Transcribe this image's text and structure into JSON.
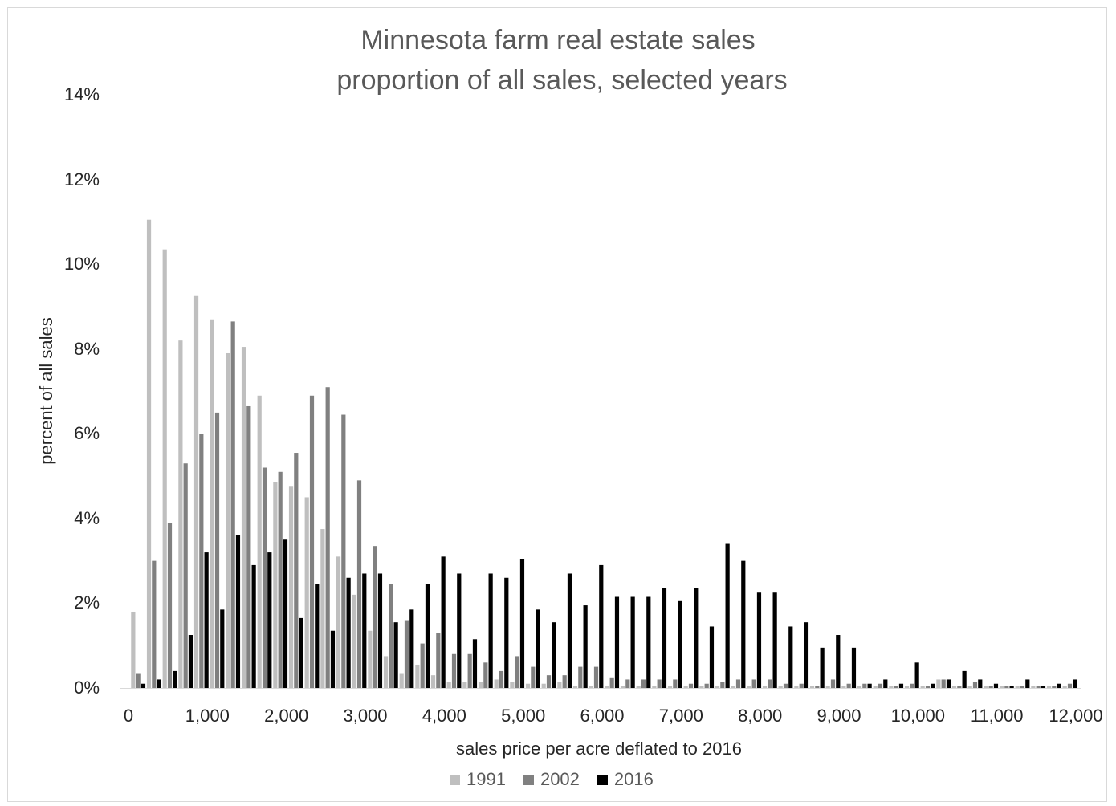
{
  "chart_data": {
    "type": "bar",
    "title": "Minnesota farm real estate sales",
    "subtitle": "proportion of all sales, selected years",
    "xlabel": "sales price per acre deflated to 2016",
    "ylabel": "percent of all sales",
    "ylim": [
      0,
      14
    ],
    "yticks": [
      "0%",
      "2%",
      "4%",
      "6%",
      "8%",
      "10%",
      "12%",
      "14%"
    ],
    "xlim": [
      0,
      12000
    ],
    "xticks": [
      "0",
      "1,000",
      "2,000",
      "3,000",
      "4,000",
      "5,000",
      "6,000",
      "7,000",
      "8,000",
      "9,000",
      "10,000",
      "11,000",
      "12,000"
    ],
    "grid": false,
    "legend_position": "bottom",
    "bin_width": 200,
    "x": [
      200,
      400,
      600,
      800,
      1000,
      1200,
      1400,
      1600,
      1800,
      2000,
      2200,
      2400,
      2600,
      2800,
      3000,
      3200,
      3400,
      3600,
      3800,
      4000,
      4200,
      4400,
      4600,
      4800,
      5000,
      5200,
      5400,
      5600,
      5800,
      6000,
      6200,
      6400,
      6600,
      6800,
      7000,
      7200,
      7400,
      7600,
      7800,
      8000,
      8200,
      8400,
      8600,
      8800,
      9000,
      9200,
      9400,
      9600,
      9800,
      10000,
      10200,
      10400,
      10600,
      10800,
      11000,
      11200,
      11400,
      11600,
      11800,
      12000
    ],
    "series": [
      {
        "name": "1991",
        "color": "#bfbfbf",
        "values": [
          1.8,
          11.05,
          10.35,
          8.2,
          9.25,
          8.7,
          7.9,
          8.05,
          6.9,
          4.85,
          4.75,
          4.5,
          3.75,
          3.1,
          2.2,
          1.35,
          0.75,
          0.35,
          0.55,
          0.3,
          0.15,
          0.15,
          0.15,
          0.2,
          0.15,
          0.1,
          0.1,
          0.15,
          0.05,
          0.05,
          0.05,
          0.05,
          0.05,
          0.05,
          0.05,
          0.05,
          0.05,
          0.05,
          0.05,
          0.05,
          0.05,
          0.05,
          0.05,
          0.05,
          0.05,
          0.05,
          0.05,
          0.05,
          0.05,
          0.05,
          0.05,
          0.2,
          0.05,
          0.05,
          0.05,
          0.05,
          0.05,
          0.05,
          0.05,
          0.05
        ]
      },
      {
        "name": "2002",
        "color": "#808080",
        "values": [
          0.35,
          3.0,
          3.9,
          5.3,
          6.0,
          6.5,
          8.65,
          6.65,
          5.2,
          5.1,
          5.55,
          6.9,
          7.1,
          6.45,
          4.9,
          3.35,
          2.45,
          1.6,
          1.05,
          1.3,
          0.8,
          0.8,
          0.6,
          0.4,
          0.75,
          0.5,
          0.3,
          0.3,
          0.5,
          0.5,
          0.25,
          0.2,
          0.2,
          0.2,
          0.2,
          0.1,
          0.1,
          0.15,
          0.2,
          0.2,
          0.2,
          0.1,
          0.1,
          0.05,
          0.2,
          0.1,
          0.1,
          0.1,
          0.05,
          0.1,
          0.05,
          0.2,
          0.05,
          0.15,
          0.05,
          0.05,
          0.05,
          0.05,
          0.05,
          0.1
        ]
      },
      {
        "name": "2016",
        "color": "#000000",
        "values": [
          0.1,
          0.2,
          0.4,
          1.25,
          3.2,
          1.85,
          3.6,
          2.9,
          3.2,
          3.5,
          1.65,
          2.45,
          1.35,
          2.6,
          2.7,
          2.7,
          1.55,
          1.85,
          2.45,
          3.1,
          2.7,
          1.15,
          2.7,
          2.6,
          3.05,
          1.85,
          1.55,
          2.7,
          1.95,
          2.9,
          2.15,
          2.15,
          2.15,
          2.35,
          2.05,
          2.35,
          1.45,
          3.4,
          3.0,
          2.25,
          2.25,
          1.45,
          1.55,
          0.95,
          1.25,
          0.95,
          0.1,
          0.2,
          0.1,
          0.6,
          0.1,
          0.2,
          0.4,
          0.2,
          0.1,
          0.05,
          0.2,
          0.05,
          0.1,
          0.2
        ]
      }
    ]
  }
}
